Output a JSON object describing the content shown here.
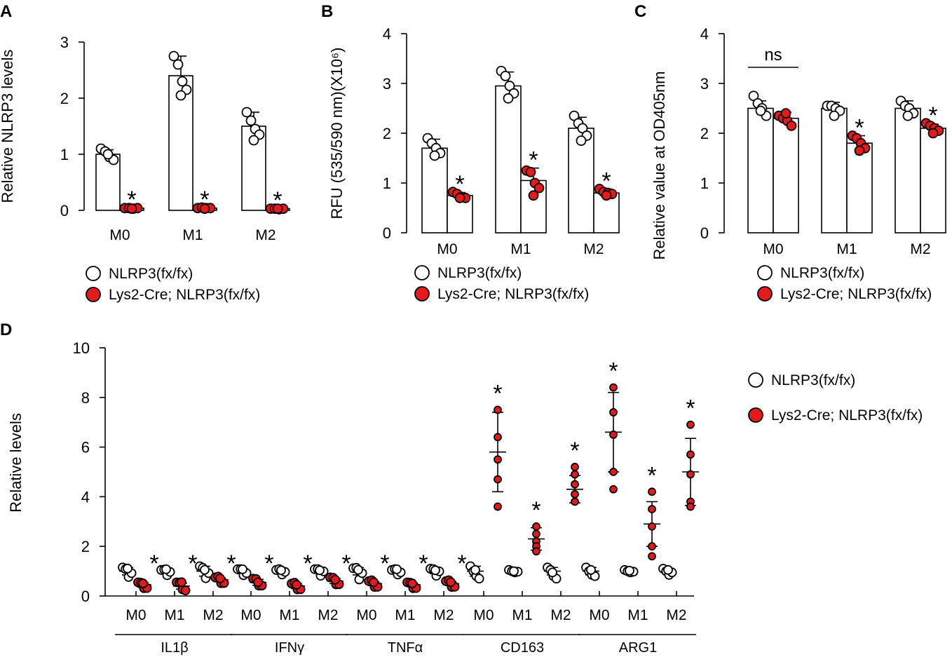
{
  "colors": {
    "ko_fill": "#e41a1c",
    "wt_fill": "#ffffff",
    "stroke": "#000000"
  },
  "legend": {
    "wt_label": "NLRP3(fx/fx)",
    "ko_label": "Lys2-Cre; NLRP3(fx/fx)"
  },
  "chart_data": [
    {
      "panel": "A",
      "type": "bar",
      "ylabel": "Relative NLRP3 levels",
      "ylim": [
        0,
        3
      ],
      "yticks": [
        "0",
        "1",
        "2",
        "3"
      ],
      "categories": [
        "M0",
        "M1",
        "M2"
      ],
      "series": [
        {
          "name": "NLRP3(fx/fx)",
          "values": [
            1.0,
            2.4,
            1.5
          ],
          "sd": [
            0.08,
            0.35,
            0.25
          ],
          "points": [
            [
              1.1,
              1.05,
              0.95,
              0.9,
              1.0
            ],
            [
              2.75,
              2.6,
              2.3,
              2.15,
              2.05
            ],
            [
              1.75,
              1.6,
              1.45,
              1.35,
              1.25
            ]
          ]
        },
        {
          "name": "Lys2-Cre; NLRP3(fx/fx)",
          "values": [
            0.04,
            0.04,
            0.03
          ],
          "sd": [
            0.01,
            0.01,
            0.01
          ],
          "points": [
            [
              0.04,
              0.04,
              0.03,
              0.04,
              0.03
            ],
            [
              0.04,
              0.05,
              0.04,
              0.04,
              0.03
            ],
            [
              0.03,
              0.03,
              0.02,
              0.03,
              0.03
            ]
          ]
        }
      ],
      "annotations": [
        "*",
        "*",
        "*"
      ]
    },
    {
      "panel": "B",
      "type": "bar",
      "ylabel": "RFU (535/590 nm)(X10⁶)",
      "ylim": [
        0,
        4
      ],
      "yticks": [
        "0",
        "1",
        "2",
        "3",
        "4"
      ],
      "categories": [
        "M0",
        "M1",
        "M2"
      ],
      "series": [
        {
          "name": "NLRP3(fx/fx)",
          "values": [
            1.7,
            2.95,
            2.1
          ],
          "sd": [
            0.18,
            0.28,
            0.22
          ],
          "points": [
            [
              1.9,
              1.8,
              1.7,
              1.6,
              1.55
            ],
            [
              3.25,
              3.15,
              2.95,
              2.8,
              2.7
            ],
            [
              2.35,
              2.2,
              2.1,
              1.95,
              1.85
            ]
          ]
        },
        {
          "name": "Lys2-Cre; NLRP3(fx/fx)",
          "values": [
            0.75,
            1.05,
            0.8
          ],
          "sd": [
            0.06,
            0.25,
            0.08
          ],
          "points": [
            [
              0.82,
              0.78,
              0.72,
              0.7,
              0.7
            ],
            [
              1.25,
              1.22,
              1.0,
              0.9,
              0.75
            ],
            [
              0.88,
              0.82,
              0.8,
              0.78,
              0.75
            ]
          ]
        }
      ],
      "annotations": [
        "*",
        "*",
        "*"
      ]
    },
    {
      "panel": "C",
      "type": "bar",
      "ylabel": "Relative value at OD405nm",
      "ylim": [
        0,
        4
      ],
      "yticks": [
        "0",
        "1",
        "2",
        "3",
        "4"
      ],
      "categories": [
        "M0",
        "M1",
        "M2"
      ],
      "series": [
        {
          "name": "NLRP3(fx/fx)",
          "values": [
            2.5,
            2.5,
            2.5
          ],
          "sd": [
            0.15,
            0.12,
            0.15
          ],
          "points": [
            [
              2.75,
              2.6,
              2.5,
              2.35,
              2.45
            ],
            [
              2.55,
              2.55,
              2.5,
              2.45,
              2.35
            ],
            [
              2.65,
              2.55,
              2.5,
              2.4,
              2.35
            ]
          ]
        },
        {
          "name": "Lys2-Cre; NLRP3(fx/fx)",
          "values": [
            2.3,
            1.8,
            2.1
          ],
          "sd": [
            0.12,
            0.15,
            0.08
          ],
          "points": [
            [
              2.35,
              2.3,
              2.25,
              2.15,
              2.4
            ],
            [
              1.95,
              1.9,
              1.8,
              1.7,
              1.65
            ],
            [
              2.2,
              2.15,
              2.1,
              2.05,
              2.0
            ]
          ]
        }
      ],
      "annotations": [
        "ns",
        "*",
        "*"
      ]
    },
    {
      "panel": "D",
      "type": "scatter",
      "ylabel": "Relative levels",
      "ylim": [
        0,
        10
      ],
      "yticks": [
        "0",
        "2",
        "4",
        "6",
        "8",
        "10"
      ],
      "groups": [
        "IL1β",
        "IFNγ",
        "TNFα",
        "CD163",
        "ARG1"
      ],
      "categories": [
        "M0",
        "M1",
        "M2"
      ],
      "series": [
        {
          "name": "NLRP3(fx/fx)",
          "values": [
            [
              1.0,
              1.0,
              1.0
            ],
            [
              1.0,
              1.0,
              1.0
            ],
            [
              1.0,
              1.0,
              1.0
            ],
            [
              1.0,
              1.0,
              1.0
            ],
            [
              1.0,
              1.0,
              1.0
            ]
          ],
          "sd": [
            [
              0.15,
              0.08,
              0.2
            ],
            [
              0.1,
              0.06,
              0.08
            ],
            [
              0.15,
              0.06,
              0.1
            ],
            [
              0.2,
              0.06,
              0.15
            ],
            [
              0.15,
              0.05,
              0.12
            ]
          ],
          "points": [
            [
              [
                1.15,
                1.0,
                0.85,
                0.95,
                1.05
              ],
              [
                1.05,
                0.98,
                0.92,
                1.0,
                1.02
              ],
              [
                1.2,
                1.05,
                0.8,
                0.95,
                1.0
              ]
            ],
            [
              [
                1.08,
                1.0,
                0.92,
                0.95,
                1.02
              ],
              [
                1.05,
                1.0,
                0.95,
                1.0,
                0.98
              ],
              [
                1.08,
                1.0,
                0.9,
                1.02,
                0.98
              ]
            ],
            [
              [
                1.12,
                1.05,
                0.75,
                0.95,
                1.0
              ],
              [
                1.05,
                1.0,
                0.95,
                0.98,
                1.02
              ],
              [
                1.1,
                1.0,
                0.9,
                1.02,
                0.98
              ]
            ],
            [
              [
                1.2,
                1.0,
                0.8,
                0.7,
                1.05
              ],
              [
                1.05,
                1.0,
                0.95,
                0.98,
                1.0
              ],
              [
                1.15,
                1.05,
                0.8,
                0.7,
                0.95
              ]
            ],
            [
              [
                1.15,
                1.0,
                0.85,
                0.8,
                1.05
              ],
              [
                1.05,
                1.0,
                0.95,
                0.98,
                1.02
              ],
              [
                1.1,
                1.0,
                0.85,
                0.95,
                1.05
              ]
            ]
          ]
        },
        {
          "name": "Lys2-Cre; NLRP3(fx/fx)",
          "values": [
            [
              0.45,
              0.4,
              0.65
            ],
            [
              0.55,
              0.4,
              0.6
            ],
            [
              0.5,
              0.45,
              0.5
            ],
            [
              5.8,
              2.3,
              4.3
            ],
            [
              6.6,
              2.9,
              5.0
            ]
          ],
          "sd": [
            [
              0.1,
              0.12,
              0.08
            ],
            [
              0.12,
              0.1,
              0.1
            ],
            [
              0.08,
              0.08,
              0.08
            ],
            [
              1.6,
              0.45,
              0.55
            ],
            [
              1.6,
              0.9,
              1.35
            ]
          ],
          "points": [
            [
              [
                0.55,
                0.45,
                0.4,
                0.35,
                0.45
              ],
              [
                0.55,
                0.45,
                0.35,
                0.25,
                0.5
              ],
              [
                0.75,
                0.7,
                0.6,
                0.55,
                0.65
              ]
            ],
            [
              [
                0.7,
                0.6,
                0.5,
                0.45,
                0.5
              ],
              [
                0.5,
                0.45,
                0.35,
                0.3,
                0.4
              ],
              [
                0.75,
                0.65,
                0.55,
                0.5,
                0.6
              ]
            ],
            [
              [
                0.6,
                0.55,
                0.45,
                0.4,
                0.5
              ],
              [
                0.55,
                0.45,
                0.4,
                0.35,
                0.45
              ],
              [
                0.6,
                0.55,
                0.45,
                0.4,
                0.5
              ]
            ],
            [
              [
                7.5,
                6.4,
                5.5,
                4.7,
                3.6
              ],
              [
                2.8,
                2.5,
                2.2,
                2.0,
                1.8
              ],
              [
                5.2,
                4.9,
                4.5,
                4.1,
                3.8
              ]
            ],
            [
              [
                8.4,
                7.4,
                6.5,
                5.0,
                4.3
              ],
              [
                4.2,
                3.5,
                2.8,
                2.0,
                1.6
              ],
              [
                6.9,
                5.7,
                4.9,
                3.8,
                3.6
              ]
            ]
          ]
        }
      ],
      "annotations": [
        "*",
        "*",
        "*",
        "*",
        "*",
        "*",
        "*",
        "*",
        "*",
        "*",
        "*",
        "*",
        "*",
        "*",
        "*"
      ]
    }
  ]
}
